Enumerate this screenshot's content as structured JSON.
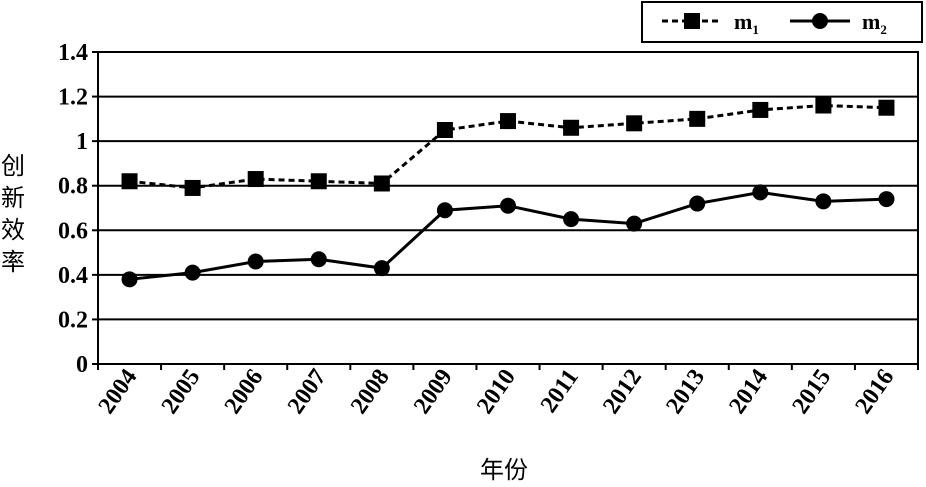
{
  "chart_data": {
    "type": "line",
    "x": [
      "2004",
      "2005",
      "2006",
      "2007",
      "2008",
      "2009",
      "2010",
      "2011",
      "2012",
      "2013",
      "2014",
      "2015",
      "2016"
    ],
    "series": [
      {
        "name": "m1",
        "label_main": "m",
        "label_sub": "1",
        "marker": "square",
        "dash": true,
        "values": [
          0.82,
          0.79,
          0.83,
          0.82,
          0.81,
          1.05,
          1.09,
          1.06,
          1.08,
          1.1,
          1.14,
          1.16,
          1.15
        ]
      },
      {
        "name": "m2",
        "label_main": "m",
        "label_sub": "2",
        "marker": "circle",
        "dash": false,
        "values": [
          0.38,
          0.41,
          0.46,
          0.47,
          0.43,
          0.69,
          0.71,
          0.65,
          0.63,
          0.72,
          0.77,
          0.73,
          0.74
        ]
      }
    ],
    "xlabel": "年份",
    "ylabel": "创新效率",
    "ylim": [
      0,
      1.4
    ],
    "yticks": [
      "0",
      "0.2",
      "0.4",
      "0.6",
      "0.8",
      "1",
      "1.2",
      "1.4"
    ],
    "grid": true,
    "legend_position": "top-right"
  }
}
